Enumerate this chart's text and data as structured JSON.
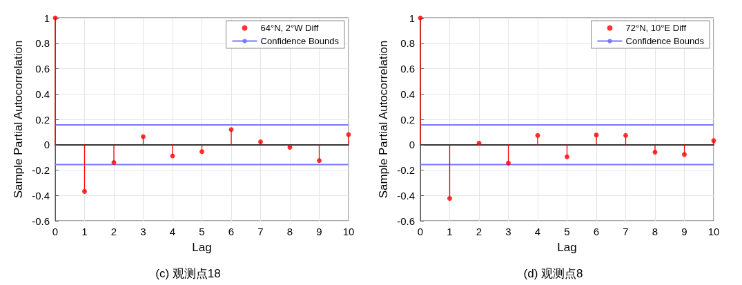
{
  "chart_data": [
    {
      "type": "lollipop",
      "xlabel": "Lag",
      "ylabel": "Sample Partial Autocorrelation",
      "annotations": [
        "(c) 观测点18"
      ],
      "x": [
        0,
        1,
        2,
        3,
        4,
        5,
        6,
        7,
        8,
        9,
        10
      ],
      "xlim": [
        0,
        10
      ],
      "xticks": [
        0,
        1,
        2,
        3,
        4,
        5,
        6,
        7,
        8,
        9,
        10
      ],
      "ylim": [
        -0.6,
        1
      ],
      "yticks": [
        -0.6,
        -0.4,
        -0.2,
        0,
        0.2,
        0.4,
        0.6,
        0.8,
        1
      ],
      "grid": true,
      "legend": "top right",
      "marker": "circle",
      "series": [
        {
          "name": "64°N, 2°W Diff",
          "color": "#ff0000",
          "values": [
            1,
            -0.368,
            -0.14,
            0.064,
            -0.088,
            -0.054,
            0.12,
            0.023,
            -0.02,
            -0.125,
            0.08
          ]
        }
      ],
      "ref_lines": [
        {
          "axis": "y",
          "value": 0.157,
          "label": "Confidence Bounds",
          "color": "#7777ff"
        },
        {
          "axis": "y",
          "value": -0.157,
          "color": "#7777ff"
        }
      ]
    },
    {
      "type": "lollipop",
      "xlabel": "Lag",
      "ylabel": "Sample Partial Autocorrelation",
      "annotations": [
        "(d) 观测点8"
      ],
      "x": [
        0,
        1,
        2,
        3,
        4,
        5,
        6,
        7,
        8,
        9,
        10
      ],
      "xlim": [
        0,
        10
      ],
      "xticks": [
        0,
        1,
        2,
        3,
        4,
        5,
        6,
        7,
        8,
        9,
        10
      ],
      "ylim": [
        -0.6,
        1
      ],
      "yticks": [
        -0.6,
        -0.4,
        -0.2,
        0,
        0.2,
        0.4,
        0.6,
        0.8,
        1
      ],
      "grid": true,
      "legend": "top right",
      "marker": "circle",
      "series": [
        {
          "name": "72°N, 10°E Diff",
          "color": "#ff0000",
          "values": [
            1,
            -0.423,
            0.012,
            -0.145,
            0.073,
            -0.095,
            0.077,
            0.073,
            -0.059,
            -0.077,
            0.032
          ]
        }
      ],
      "ref_lines": [
        {
          "axis": "y",
          "value": 0.157,
          "label": "Confidence Bounds",
          "color": "#7777ff"
        },
        {
          "axis": "y",
          "value": -0.157,
          "color": "#7777ff"
        }
      ]
    }
  ]
}
